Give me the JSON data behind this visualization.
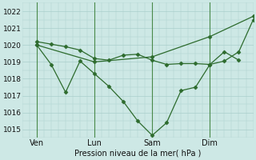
{
  "background_color": "#cde8e5",
  "grid_color": "#aacfcc",
  "line_color": "#2d6b2d",
  "marker_color": "#2d6b2d",
  "xlabel_text": "Pression niveau de la mer( hPa )",
  "ylim": [
    1014.5,
    1022.5
  ],
  "yticks": [
    1015,
    1016,
    1017,
    1018,
    1019,
    1020,
    1021,
    1022
  ],
  "xlim": [
    0,
    16
  ],
  "xtick_labels": [
    "Ven",
    "Lun",
    "Sam",
    "Dim"
  ],
  "xtick_positions": [
    1,
    5,
    9,
    13
  ],
  "vline_positions": [
    1,
    5,
    9,
    13
  ],
  "series1_x": [
    1,
    2,
    3,
    4,
    5,
    6,
    7,
    8,
    9,
    10,
    11,
    12,
    13,
    14,
    15
  ],
  "series1_y": [
    1020.2,
    1020.05,
    1019.9,
    1019.7,
    1019.2,
    1019.1,
    1019.4,
    1019.45,
    1019.1,
    1018.85,
    1018.9,
    1018.9,
    1018.85,
    1019.6,
    1019.1
  ],
  "series2_x": [
    1,
    2,
    3,
    4,
    5,
    6,
    7,
    8,
    9,
    10,
    11,
    12,
    13,
    14,
    15,
    16
  ],
  "series2_y": [
    1020.0,
    1018.85,
    1017.2,
    1019.05,
    1018.3,
    1017.55,
    1016.65,
    1015.5,
    1014.65,
    1015.4,
    1017.3,
    1017.5,
    1018.85,
    1019.05,
    1019.6,
    1021.5
  ],
  "series3_x": [
    1,
    5,
    9,
    13,
    16
  ],
  "series3_y": [
    1020.0,
    1019.0,
    1019.3,
    1020.5,
    1021.7
  ],
  "ms": 2.5,
  "lw": 0.9
}
